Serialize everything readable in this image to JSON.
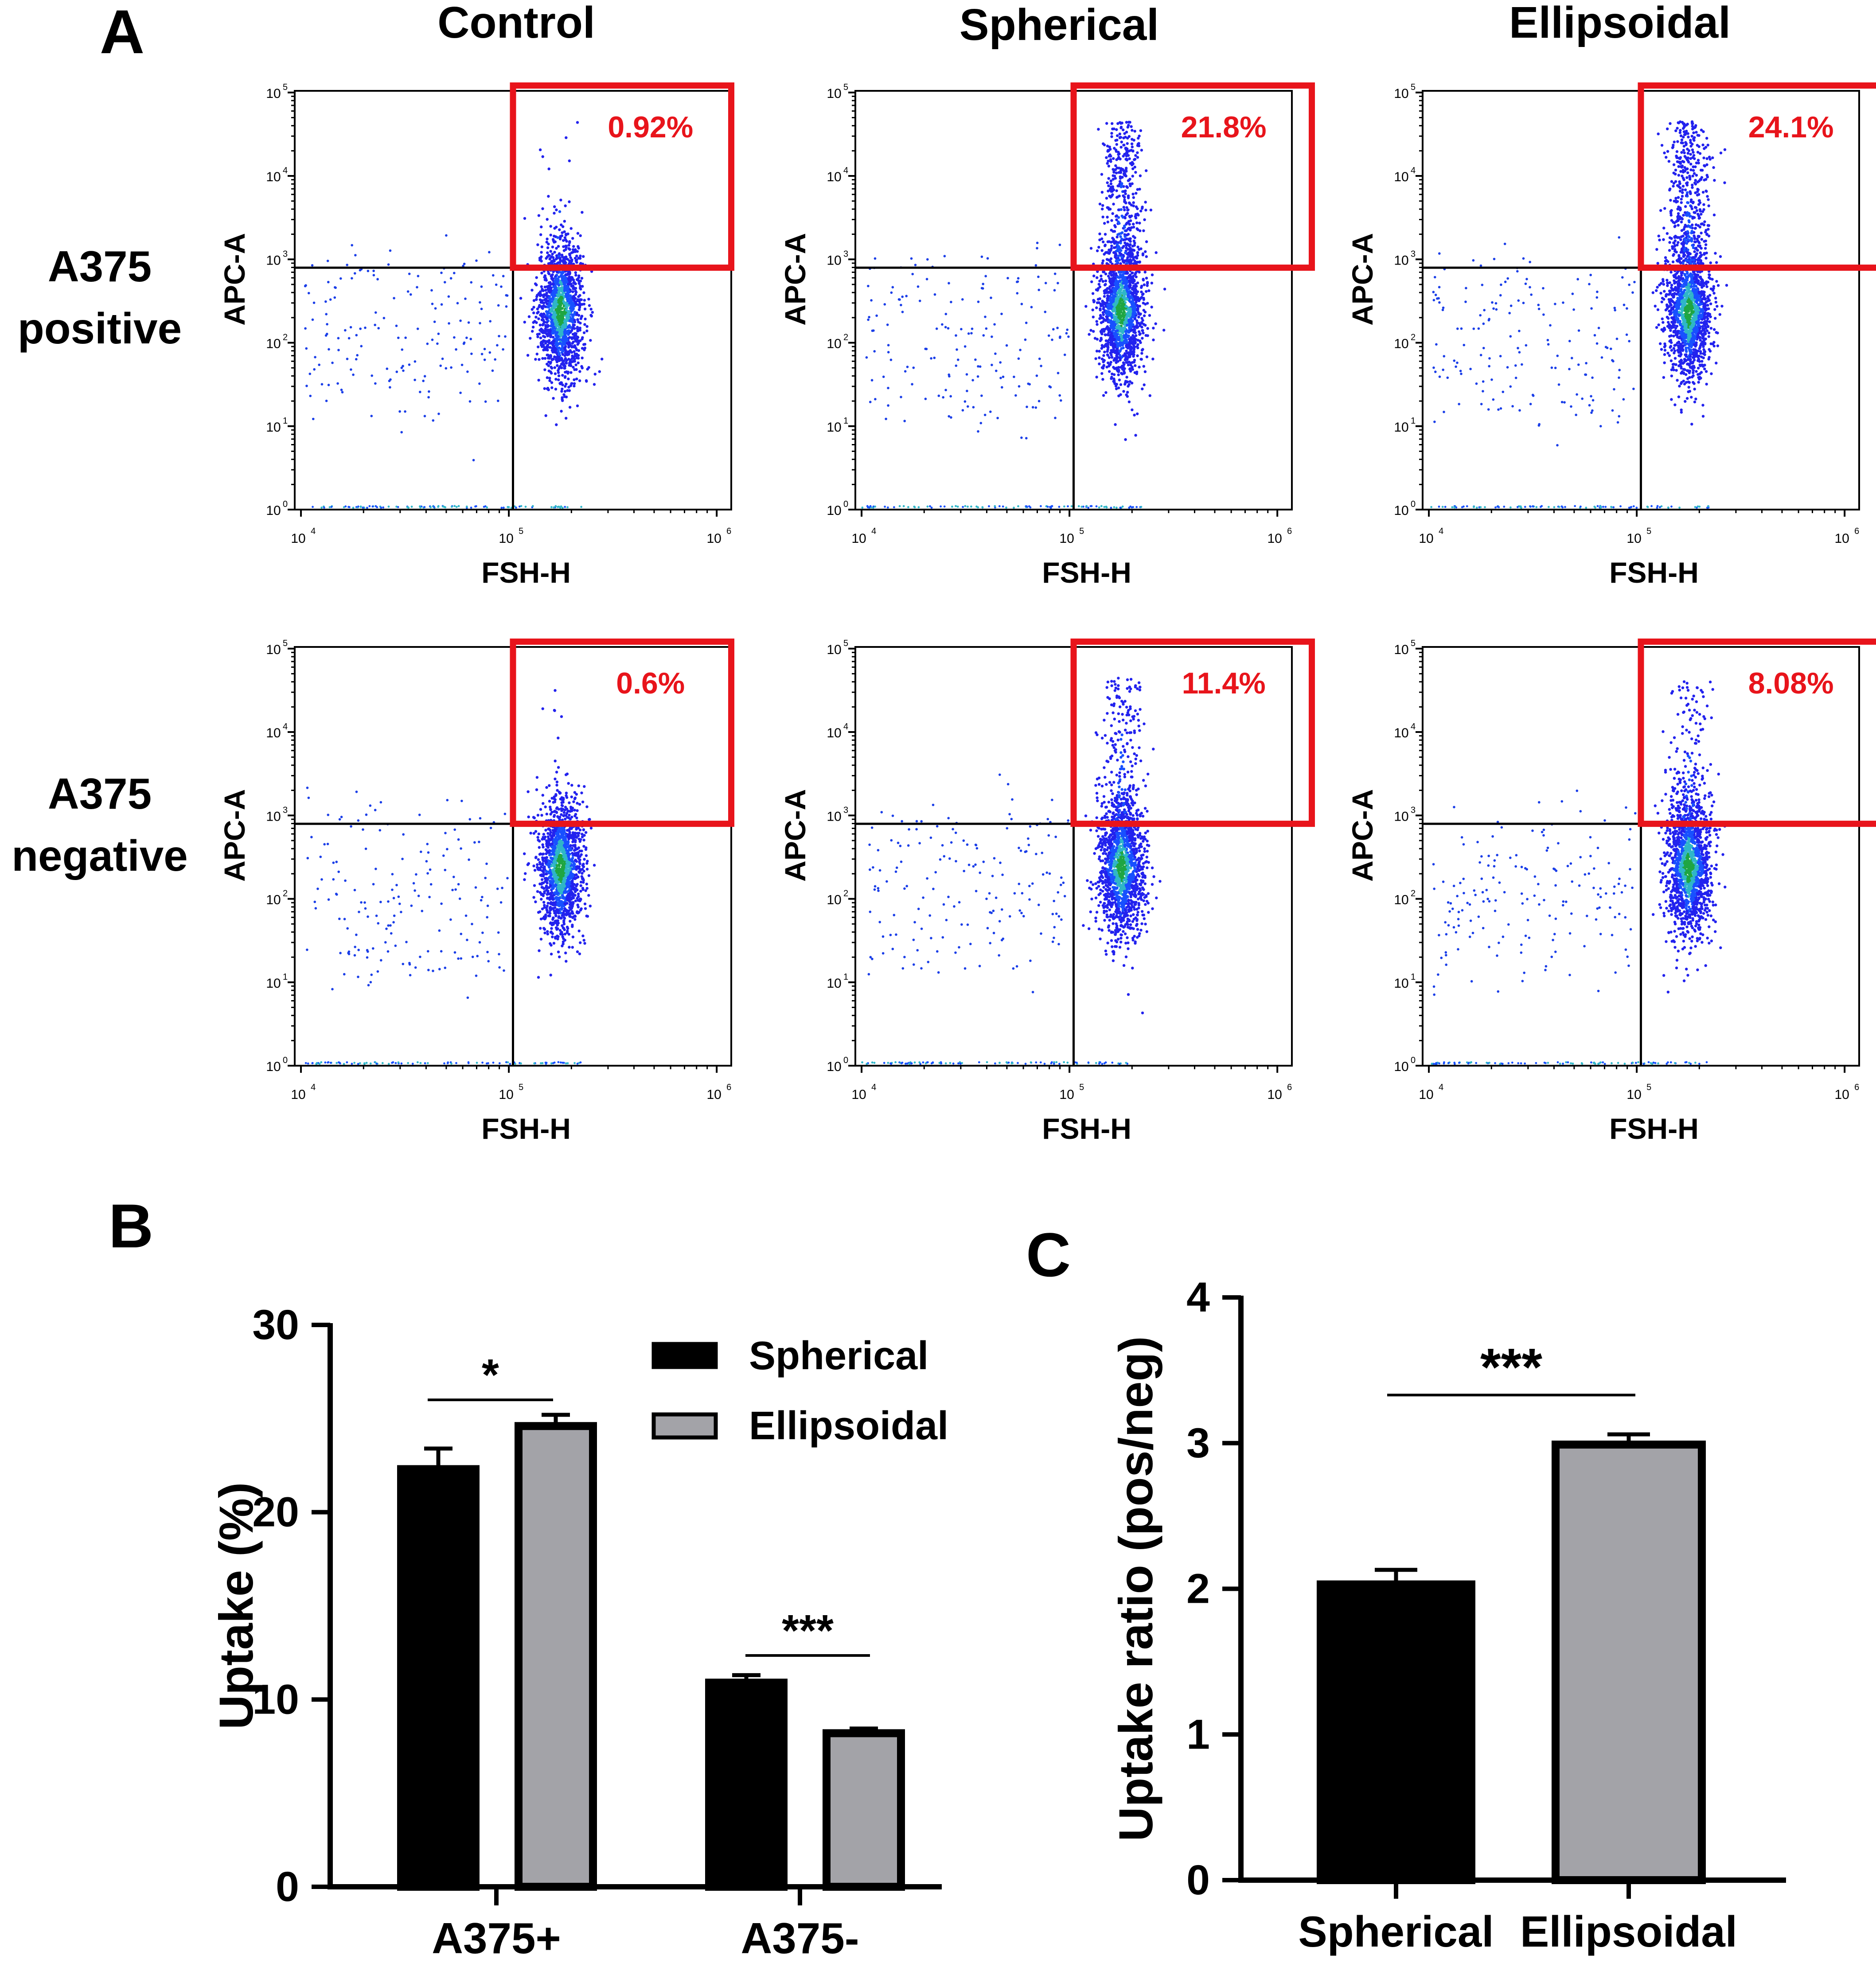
{
  "colors": {
    "spherical": "#000000",
    "ellipsoidal": "#a3a3a8",
    "gate": "#e8141b",
    "axis": "#000000"
  },
  "panel_labels": {
    "a": "A",
    "b": "B",
    "c": "C"
  },
  "panel_a": {
    "column_titles": [
      "Control",
      "Spherical",
      "Ellipsoidal"
    ],
    "row_titles": [
      {
        "line1": "A375",
        "line2": "positive"
      },
      {
        "line1": "A375",
        "line2": "negative"
      }
    ],
    "x_axis_label": "FSH-H",
    "y_axis_label": "APC-A",
    "x_ticks": [
      {
        "base": "10",
        "exp": "4",
        "value": 4
      },
      {
        "base": "10",
        "exp": "5",
        "value": 5
      },
      {
        "base": "10",
        "exp": "6",
        "value": 6
      }
    ],
    "y_ticks": [
      {
        "base": "10",
        "exp": "0",
        "value": 0
      },
      {
        "base": "10",
        "exp": "1",
        "value": 1
      },
      {
        "base": "10",
        "exp": "2",
        "value": 2
      },
      {
        "base": "10",
        "exp": "3",
        "value": 3
      },
      {
        "base": "10",
        "exp": "4",
        "value": 4
      },
      {
        "base": "10",
        "exp": "5",
        "value": 5
      }
    ],
    "x_log_range": [
      3.97,
      6.07
    ],
    "y_log_range": [
      0,
      5.02
    ],
    "gate_threshold_log": {
      "x": 5.02,
      "y": 2.9
    },
    "plots": [
      {
        "row": 0,
        "col": 0,
        "gate_percent": "0.92%",
        "high_fraction": 0.01
      },
      {
        "row": 0,
        "col": 1,
        "gate_percent": "21.8%",
        "high_fraction": 0.22
      },
      {
        "row": 0,
        "col": 2,
        "gate_percent": "24.1%",
        "high_fraction": 0.24
      },
      {
        "row": 1,
        "col": 0,
        "gate_percent": "0.6%",
        "high_fraction": 0.006
      },
      {
        "row": 1,
        "col": 1,
        "gate_percent": "11.4%",
        "high_fraction": 0.114
      },
      {
        "row": 1,
        "col": 2,
        "gate_percent": "8.08%",
        "high_fraction": 0.081
      }
    ]
  },
  "chart_data": [
    {
      "type": "bar",
      "panel": "B",
      "title": "",
      "xlabel": "",
      "ylabel": "Uptake  (%)",
      "categories": [
        "A375+",
        "A375-"
      ],
      "ylim": [
        0,
        30
      ],
      "yticks": [
        0,
        10,
        20,
        30
      ],
      "series": [
        {
          "name": "Spherical",
          "values": [
            22.3,
            10.9
          ],
          "errors": [
            1.1,
            0.4
          ]
        },
        {
          "name": "Ellipsoidal",
          "values": [
            24.6,
            8.2
          ],
          "errors": [
            0.6,
            0.25
          ]
        }
      ],
      "significance": [
        "*",
        "***"
      ],
      "legend": "top-right"
    },
    {
      "type": "bar",
      "panel": "C",
      "title": "",
      "xlabel": "",
      "ylabel": "Uptake ratio (pos/neg)",
      "categories": [
        "Spherical",
        "Ellipsoidal"
      ],
      "values": [
        2.03,
        2.99
      ],
      "errors": [
        0.1,
        0.07
      ],
      "ylim": [
        0,
        4
      ],
      "yticks": [
        0,
        1,
        2,
        3,
        4
      ],
      "significance": [
        "***"
      ]
    }
  ]
}
